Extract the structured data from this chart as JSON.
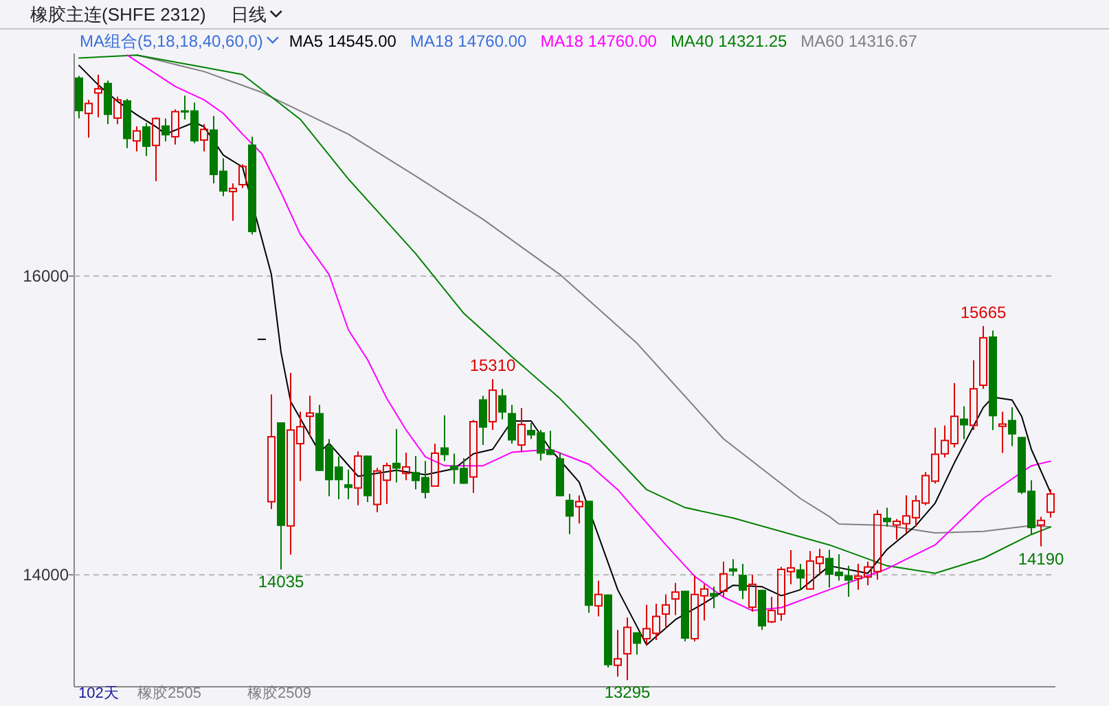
{
  "chart_data": {
    "type": "candlestick",
    "title": "橡胶主连(SHFE 2312)",
    "subtitle": "日线",
    "legend_title": "MA组合(5,18,18,40,60,0)",
    "legend": "top left",
    "grid": "y",
    "ylim": [
      13250,
      17490
    ],
    "yticks": [
      14000,
      16000
    ],
    "categories": [
      null,
      null,
      null,
      null,
      null,
      null,
      null,
      null,
      null,
      null,
      null,
      null,
      null,
      null,
      null,
      null,
      null,
      null,
      null,
      null,
      null,
      null,
      null,
      null,
      null,
      null,
      null,
      null,
      null,
      null,
      null,
      null,
      null,
      null,
      null,
      null,
      null,
      null,
      null,
      null,
      null,
      null,
      null,
      null,
      null,
      null,
      null,
      null,
      null,
      null,
      null,
      null,
      null,
      null,
      null,
      null,
      null,
      null,
      null,
      null,
      null,
      null,
      null,
      null,
      null,
      null,
      null,
      null,
      null,
      null,
      null,
      null,
      null,
      null,
      null,
      null,
      null,
      null,
      null,
      null,
      null,
      null,
      null,
      null,
      null,
      null,
      null,
      null,
      null,
      null,
      null,
      null,
      null,
      null,
      null,
      null,
      null,
      null,
      null,
      null,
      null,
      null
    ],
    "ohlc": [
      [
        17330,
        17340,
        17055,
        17104
      ],
      [
        17089,
        17180,
        16927,
        17156
      ],
      [
        17226,
        17349,
        17064,
        17254
      ],
      [
        17294,
        17309,
        17018,
        17079
      ],
      [
        17058,
        17202,
        17018,
        17180
      ],
      [
        17177,
        17187,
        16856,
        16917
      ],
      [
        16905,
        17003,
        16835,
        16972
      ],
      [
        17003,
        17024,
        16804,
        16865
      ],
      [
        16875,
        17064,
        16636,
        17055
      ],
      [
        17009,
        17055,
        16902,
        16942
      ],
      [
        16933,
        17116,
        16881,
        17101
      ],
      [
        17110,
        17208,
        17049,
        17095
      ],
      [
        17110,
        17162,
        16890,
        16902
      ],
      [
        16911,
        17018,
        16835,
        16982
      ],
      [
        16982,
        17073,
        16621,
        16676
      ],
      [
        16706,
        16789,
        16535,
        16566
      ],
      [
        16566,
        16621,
        16370,
        16587
      ],
      [
        16612,
        16749,
        16590,
        16734
      ],
      [
        16881,
        16933,
        16278,
        16294
      ],
      [
        15581,
        15581,
        15581,
        15581
      ],
      [
        14489,
        15208,
        14440,
        14924
      ],
      [
        15021,
        15021,
        14035,
        14327
      ],
      [
        14327,
        15352,
        14135,
        14969
      ],
      [
        14878,
        15092,
        14627,
        14991
      ],
      [
        15061,
        15199,
        14924,
        15083
      ],
      [
        15083,
        15138,
        14694,
        14695
      ],
      [
        14863,
        14909,
        14526,
        14633
      ],
      [
        14725,
        14792,
        14505,
        14633
      ],
      [
        14606,
        14704,
        14505,
        14581
      ],
      [
        14581,
        14826,
        14465,
        14795
      ],
      [
        14798,
        14798,
        14487,
        14526
      ],
      [
        14471,
        14716,
        14419,
        14695
      ],
      [
        14633,
        14750,
        14474,
        14731
      ],
      [
        14750,
        14976,
        14618,
        14710
      ],
      [
        14679,
        14817,
        14633,
        14722
      ],
      [
        14688,
        14795,
        14572,
        14627
      ],
      [
        14655,
        14762,
        14511,
        14548
      ],
      [
        14594,
        14878,
        14594,
        14814
      ],
      [
        14853,
        15068,
        14762,
        14801
      ],
      [
        14731,
        14811,
        14609,
        14701
      ],
      [
        14716,
        14780,
        14609,
        14609
      ],
      [
        14655,
        15037,
        14548,
        15025
      ],
      [
        15175,
        15199,
        14869,
        14985
      ],
      [
        15025,
        15310,
        14970,
        15236
      ],
      [
        15202,
        15245,
        15040,
        15086
      ],
      [
        15083,
        15138,
        14878,
        14899
      ],
      [
        14869,
        15117,
        14823,
        15006
      ],
      [
        14970,
        15016,
        14909,
        14933
      ],
      [
        14954,
        14970,
        14765,
        14811
      ],
      [
        14838,
        14964,
        14802,
        14802
      ],
      [
        14780,
        14817,
        14526,
        14526
      ],
      [
        14502,
        14542,
        14272,
        14389
      ],
      [
        14456,
        14532,
        14343,
        14490
      ],
      [
        14496,
        14496,
        13746,
        13792
      ],
      [
        13792,
        13960,
        13721,
        13868
      ],
      [
        13868,
        13868,
        13379,
        13394
      ],
      [
        13394,
        13630,
        13318,
        13437
      ],
      [
        13471,
        13715,
        13295,
        13648
      ],
      [
        13615,
        13615,
        13465,
        13538
      ],
      [
        13572,
        13798,
        13532,
        13639
      ],
      [
        13608,
        13807,
        13563,
        13721
      ],
      [
        13737,
        13868,
        13639,
        13798
      ],
      [
        13838,
        13945,
        13731,
        13884
      ],
      [
        13893,
        13893,
        13553,
        13572
      ],
      [
        13572,
        13990,
        13553,
        13868
      ],
      [
        13859,
        13936,
        13694,
        13905
      ],
      [
        13878,
        13920,
        13777,
        13853
      ],
      [
        13890,
        14088,
        13853,
        14006
      ],
      [
        14043,
        14104,
        13991,
        14021
      ],
      [
        14000,
        14073,
        13838,
        13893
      ],
      [
        13783,
        14000,
        13752,
        13936
      ],
      [
        13899,
        13899,
        13630,
        13654
      ],
      [
        13685,
        13853,
        13676,
        13761
      ],
      [
        13737,
        14052,
        13691,
        14036
      ],
      [
        14021,
        14165,
        13936,
        14046
      ],
      [
        14036,
        14073,
        13899,
        13975
      ],
      [
        13905,
        14159,
        13899,
        14092
      ],
      [
        14076,
        14174,
        13997,
        14119
      ],
      [
        14113,
        14168,
        13914,
        14000
      ],
      [
        14021,
        14137,
        13960,
        13991
      ],
      [
        13997,
        14061,
        13853,
        13960
      ],
      [
        13975,
        14073,
        13899,
        13991
      ],
      [
        13985,
        14088,
        13930,
        14052
      ],
      [
        14021,
        14434,
        13966,
        14404
      ],
      [
        14382,
        14449,
        14321,
        14352
      ],
      [
        14333,
        14373,
        14235,
        14358
      ],
      [
        14342,
        14532,
        14281,
        14394
      ],
      [
        14382,
        14532,
        14321,
        14495
      ],
      [
        14480,
        14688,
        14465,
        14664
      ],
      [
        14627,
        14985,
        14611,
        14807
      ],
      [
        14810,
        15000,
        14786,
        14899
      ],
      [
        14878,
        15284,
        14853,
        15061
      ],
      [
        15046,
        15128,
        14908,
        15000
      ],
      [
        15000,
        15437,
        14969,
        15245
      ],
      [
        15269,
        15665,
        15245,
        15587
      ],
      [
        15596,
        15636,
        14969,
        15061
      ],
      [
        14994,
        15092,
        14816,
        15009
      ],
      [
        15037,
        15122,
        14862,
        14939
      ],
      [
        14923,
        14923,
        14541,
        14550
      ],
      [
        14563,
        14633,
        14266,
        14312
      ],
      [
        14333,
        14388,
        14190,
        14364
      ],
      [
        14419,
        14572,
        14382,
        14541
      ]
    ],
    "series": [
      {
        "name": "MA5 14545.00",
        "type": "line",
        "color": "#000000",
        "values": [
          17410,
          null,
          17280,
          null,
          17170,
          null,
          17080,
          null,
          17000,
          16950,
          null,
          null,
          17030,
          17000,
          null,
          16810,
          null,
          16730,
          null,
          null,
          16010,
          15490,
          15160,
          null,
          null,
          14820,
          14880,
          null,
          null,
          14660,
          null,
          null,
          null,
          14700,
          null,
          null,
          14670,
          null,
          null,
          14710,
          null,
          14810,
          null,
          14840,
          null,
          15030,
          null,
          15030,
          null,
          14840,
          null,
          null,
          14620,
          null,
          null,
          null,
          13900,
          null,
          null,
          13530,
          null,
          null,
          13700,
          null,
          null,
          13810,
          null,
          null,
          13930,
          null,
          null,
          13920,
          null,
          13860,
          null,
          13900,
          null,
          null,
          14060,
          null,
          null,
          null,
          14010,
          null,
          14170,
          null,
          null,
          14330,
          null,
          14480,
          null,
          14750,
          null,
          null,
          15120,
          15190,
          null,
          15170,
          15060,
          14840,
          null,
          14550
        ]
      },
      {
        "name": "MA18 14760.00",
        "type": "line",
        "color": "#3b6fd8",
        "values": [
          null,
          null,
          null,
          null,
          null,
          null,
          null,
          null,
          null,
          null,
          null,
          null,
          null,
          null,
          null,
          null,
          null,
          null,
          null,
          null,
          null,
          null,
          null,
          null,
          null,
          null,
          null,
          null,
          null,
          null,
          null,
          null,
          null,
          null,
          null,
          null,
          null,
          null,
          null,
          null,
          null,
          null,
          null,
          null,
          null,
          null,
          null,
          null,
          null,
          null,
          null,
          null,
          null,
          null,
          null,
          null,
          null,
          null,
          null,
          null,
          null,
          null,
          null,
          null,
          null,
          null,
          null,
          null,
          null,
          null,
          null,
          null,
          null,
          null,
          null,
          null,
          null,
          null,
          null,
          null,
          null,
          null,
          null,
          null,
          null,
          null,
          null,
          null,
          null,
          null,
          null,
          null,
          null,
          null,
          null,
          null,
          null,
          null,
          null,
          null,
          null,
          null
        ]
      },
      {
        "name": "MA18 14760.00",
        "type": "line",
        "color": "#ff00ff",
        "values": [
          null,
          null,
          null,
          null,
          null,
          17480,
          null,
          null,
          null,
          null,
          17270,
          null,
          null,
          17180,
          null,
          17090,
          null,
          16950,
          null,
          16820,
          null,
          16560,
          null,
          16280,
          null,
          null,
          16010,
          null,
          15640,
          null,
          15440,
          null,
          15180,
          null,
          14970,
          null,
          14790,
          null,
          14730,
          null,
          null,
          null,
          14730,
          null,
          null,
          14820,
          null,
          null,
          null,
          14840,
          null,
          null,
          null,
          14740,
          null,
          null,
          14570,
          null,
          null,
          null,
          null,
          14200,
          null,
          null,
          13990,
          null,
          null,
          13850,
          null,
          null,
          13760,
          null,
          null,
          13780,
          null,
          null,
          null,
          null,
          13900,
          null,
          null,
          null,
          null,
          null,
          14040,
          null,
          null,
          null,
          null,
          14200,
          null,
          null,
          null,
          null,
          14510,
          null,
          null,
          null,
          null,
          14730,
          null,
          14760
        ]
      },
      {
        "name": "MA40 14321.25",
        "type": "line",
        "color": "#008000",
        "values": [
          17460,
          null,
          null,
          null,
          null,
          null,
          17480,
          null,
          null,
          null,
          null,
          null,
          17410,
          null,
          null,
          null,
          null,
          17350,
          null,
          17250,
          null,
          null,
          null,
          17050,
          null,
          null,
          null,
          null,
          16650,
          null,
          null,
          null,
          null,
          null,
          null,
          16150,
          null,
          null,
          null,
          null,
          15750,
          null,
          null,
          null,
          null,
          15460,
          null,
          null,
          null,
          null,
          15180,
          null,
          null,
          14980,
          null,
          null,
          null,
          null,
          null,
          14570,
          null,
          null,
          null,
          14450,
          null,
          null,
          null,
          null,
          14380,
          null,
          null,
          null,
          null,
          null,
          null,
          null,
          null,
          null,
          14200,
          null,
          null,
          null,
          null,
          null,
          14060,
          null,
          null,
          null,
          null,
          14010,
          null,
          null,
          null,
          null,
          14110,
          null,
          null,
          null,
          null,
          14270,
          null,
          14320
        ]
      },
      {
        "name": "MA60 14316.67",
        "type": "line",
        "color": "#808080",
        "values": [
          null,
          null,
          null,
          null,
          null,
          null,
          17480,
          null,
          null,
          null,
          null,
          null,
          null,
          17370,
          null,
          null,
          null,
          null,
          null,
          17230,
          null,
          null,
          null,
          null,
          null,
          null,
          null,
          null,
          16950,
          null,
          null,
          null,
          null,
          null,
          null,
          16670,
          null,
          null,
          null,
          null,
          null,
          null,
          16380,
          null,
          null,
          null,
          null,
          null,
          null,
          null,
          16010,
          null,
          null,
          null,
          null,
          null,
          null,
          null,
          15550,
          null,
          null,
          null,
          null,
          null,
          null,
          null,
          null,
          14910,
          null,
          null,
          null,
          null,
          null,
          null,
          null,
          14510,
          null,
          null,
          14390,
          14340,
          null,
          null,
          null,
          null,
          14330,
          null,
          null,
          null,
          null,
          14280,
          null,
          null,
          null,
          null,
          14290,
          null,
          null,
          null,
          null,
          14330,
          null,
          14320
        ]
      }
    ],
    "annotations": [
      "15310",
      "15665",
      "14035",
      "13295",
      "14190",
      "102天",
      "橡胶2505",
      "橡胶2509"
    ]
  }
}
